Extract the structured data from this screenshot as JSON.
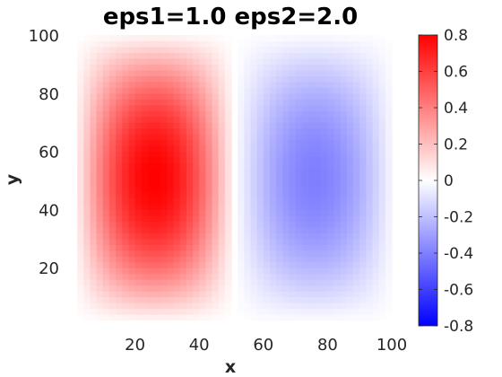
{
  "chart_data": {
    "type": "heatmap",
    "title": "eps1=1.0 eps2=2.0",
    "xlabel": "x",
    "ylabel": "y",
    "xlim": [
      0,
      100
    ],
    "ylim": [
      0,
      100
    ],
    "x_ticks": [
      "20",
      "40",
      "60",
      "80",
      "100"
    ],
    "y_ticks": [
      "20",
      "40",
      "60",
      "80",
      "100"
    ],
    "colorbar": {
      "range": [
        -0.8,
        0.8
      ],
      "ticks": [
        "0.8",
        "0.6",
        "0.4",
        "0.2",
        "0",
        "-0.2",
        "-0.4",
        "-0.6",
        "-0.8"
      ],
      "colormap": [
        "#0000ff",
        "#ffffff",
        "#ff0000"
      ]
    },
    "field": {
      "resolution": 50,
      "blobs": [
        {
          "cx": 26,
          "cy": 51,
          "half_width_x": 25,
          "half_width_y": 50,
          "peak": 0.8
        },
        {
          "cx": 76,
          "cy": 51,
          "half_width_x": 25,
          "half_width_y": 50,
          "peak": -0.4
        }
      ]
    },
    "grid": false
  }
}
